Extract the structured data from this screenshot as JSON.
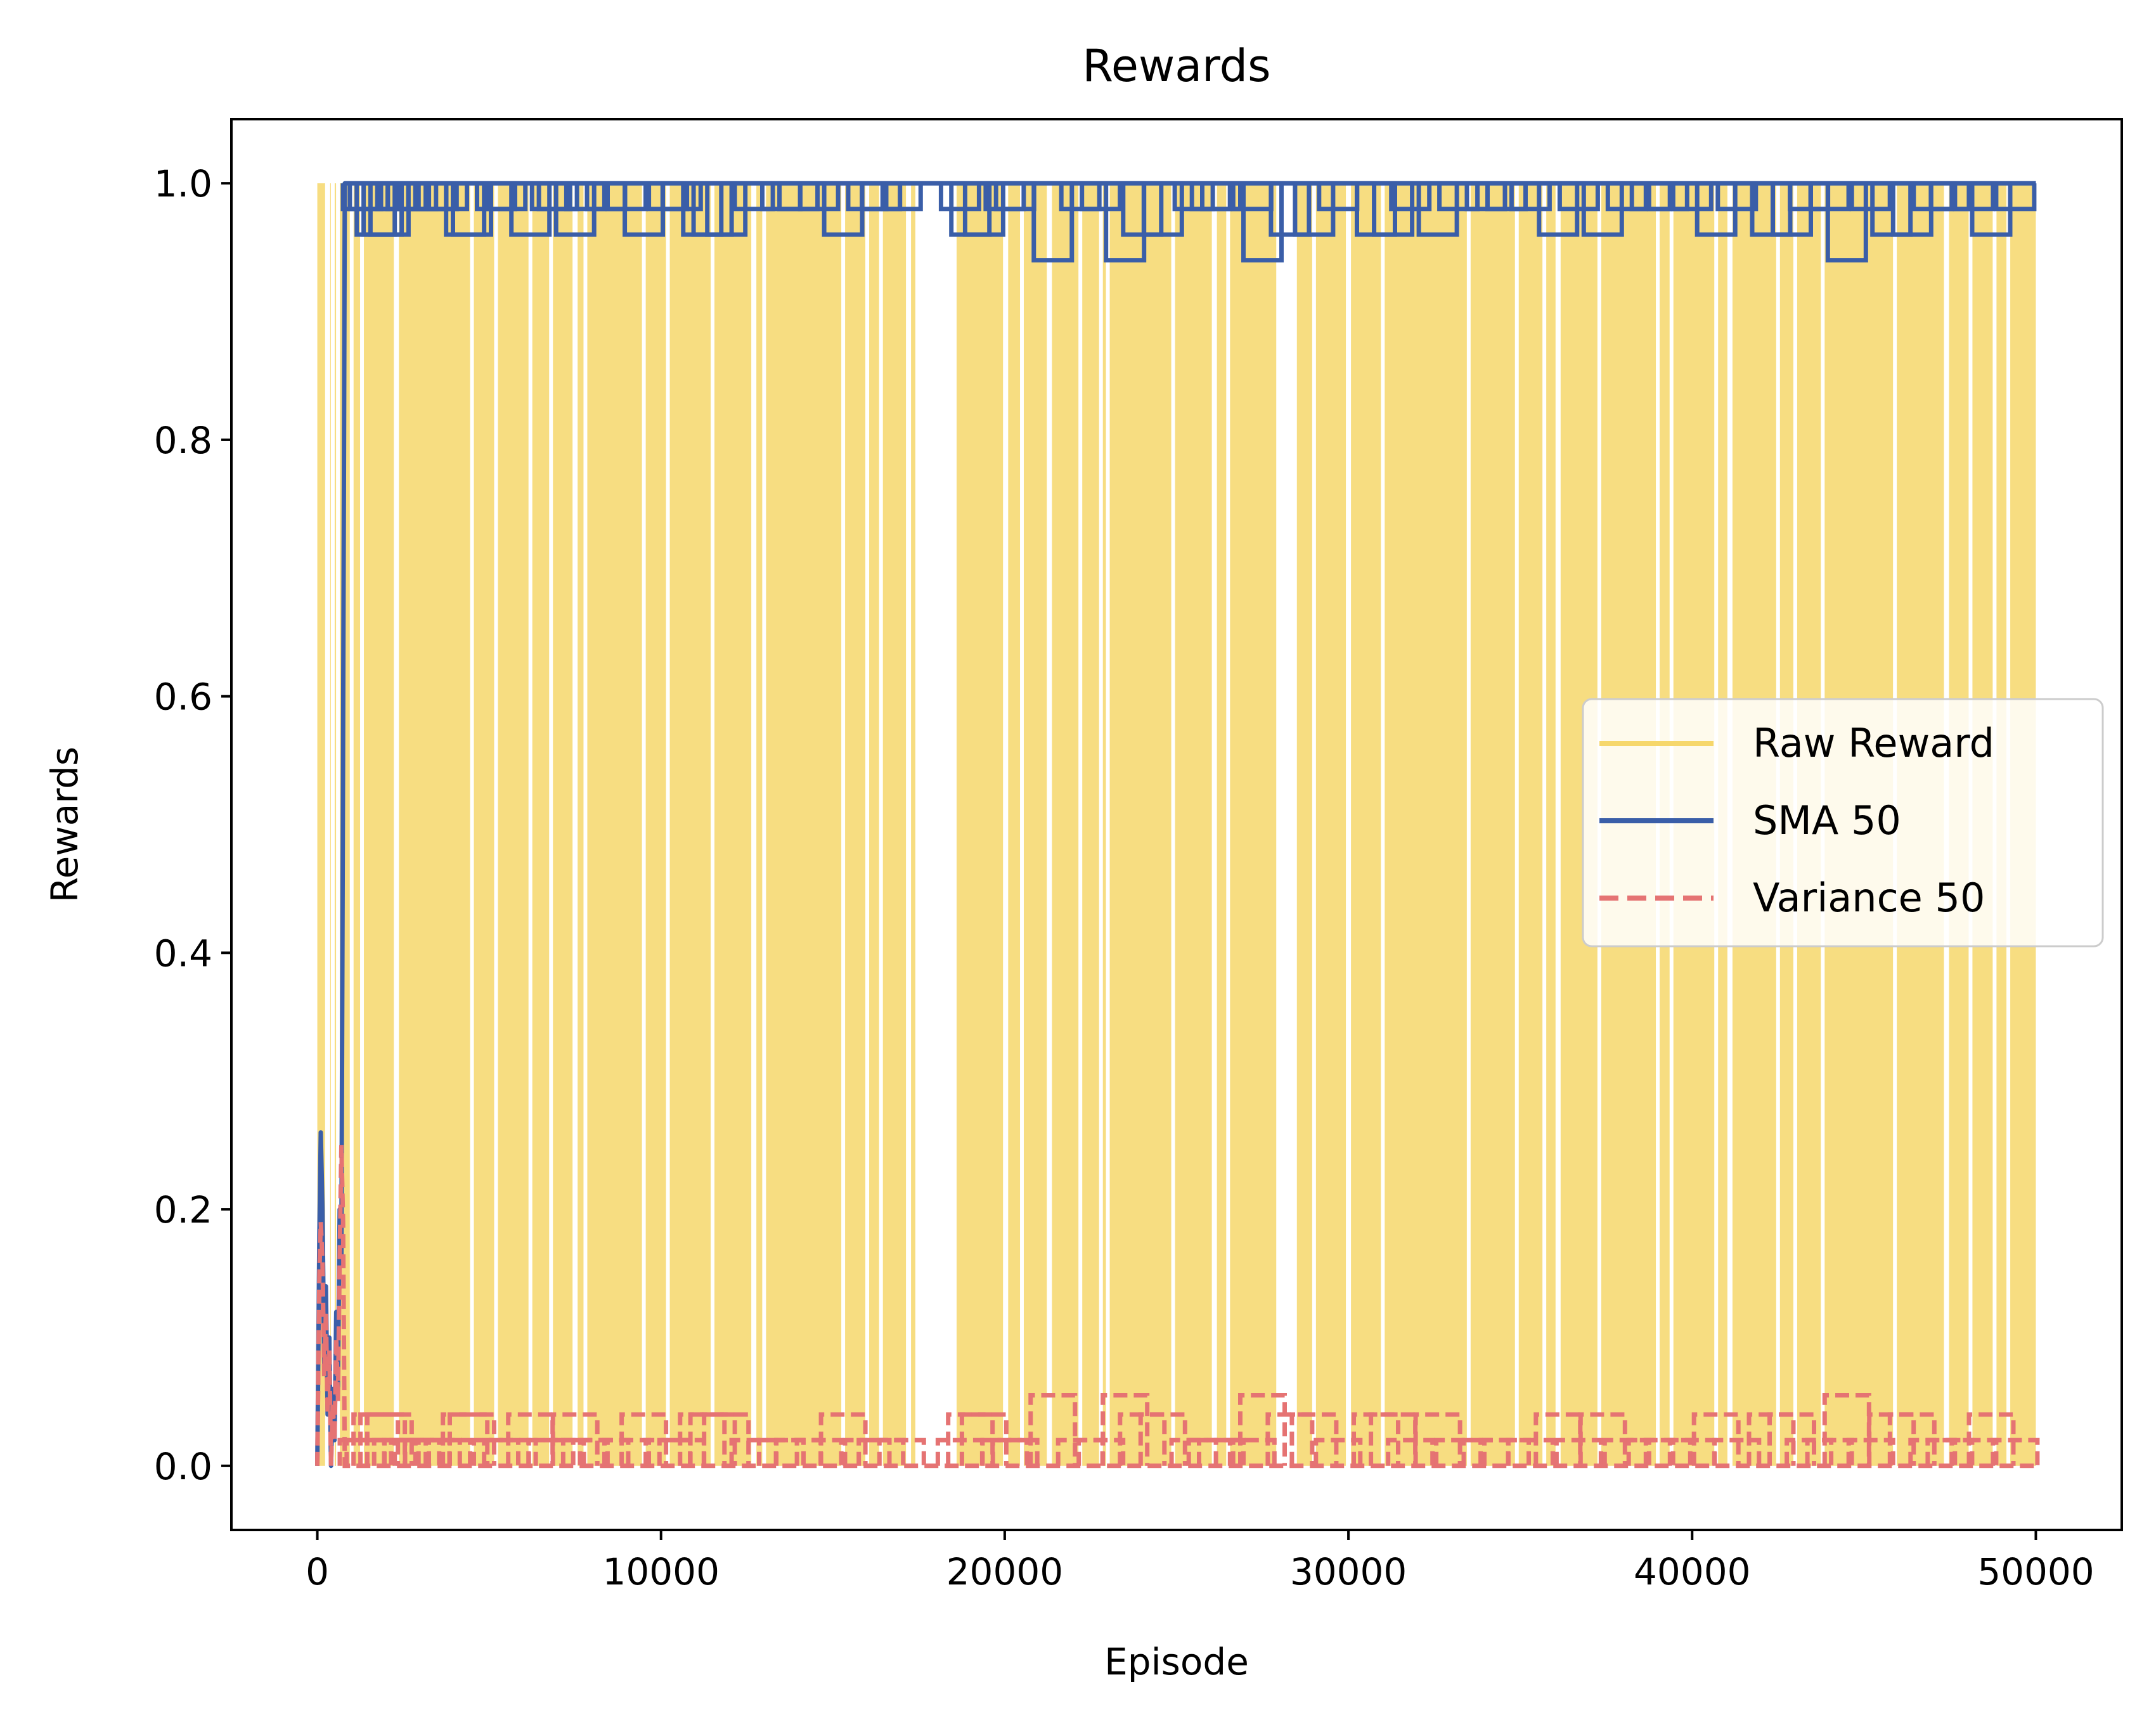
{
  "chart_data": {
    "type": "line",
    "title": "Rewards",
    "xlabel": "Episode",
    "ylabel": "Rewards",
    "xlim": [
      -2500,
      52500
    ],
    "ylim": [
      -0.05,
      1.05
    ],
    "xticks": [
      0,
      10000,
      20000,
      30000,
      40000,
      50000
    ],
    "xtick_labels": [
      "0",
      "10000",
      "20000",
      "30000",
      "40000",
      "50000"
    ],
    "yticks": [
      0.0,
      0.2,
      0.4,
      0.6,
      0.8,
      1.0
    ],
    "ytick_labels": [
      "0.0",
      "0.2",
      "0.4",
      "0.6",
      "0.8",
      "1.0"
    ],
    "grid": false,
    "legend_position": "center-right",
    "series": [
      {
        "name": "Raw Reward",
        "color": "#f6d76b",
        "style": "solid",
        "note_values": "binary rewards (0 or 1); value 1 in nearly every episode after ~700, with sparse zero episodes",
        "x": [
          0,
          700,
          50000
        ],
        "y": [
          0,
          1,
          1
        ],
        "gap_episodes": [
          300,
          450,
          600,
          1000,
          1300,
          2300,
          4500,
          5200,
          6200,
          6800,
          7500,
          7800,
          9500,
          10200,
          11500,
          12700,
          13000,
          15300,
          16000,
          16400,
          17200,
          17600,
          18000,
          18300,
          20500,
          21300,
          22200,
          22800,
          23000,
          24900,
          26100,
          26500,
          28000,
          28300,
          29000,
          30000,
          31000,
          33500,
          34900,
          35700,
          36100,
          37300,
          39000,
          39400,
          40700,
          41100,
          42500,
          43000,
          43800,
          45900,
          47400,
          48100,
          48800,
          49200
        ]
      },
      {
        "name": "SMA 50",
        "color": "#3a5ea8",
        "style": "solid",
        "x": [
          0,
          60,
          100,
          150,
          200,
          250,
          300,
          350,
          400,
          450,
          500,
          550,
          600,
          650,
          700,
          750,
          800,
          850,
          50000
        ],
        "y": [
          0.0,
          0.18,
          0.26,
          0.2,
          0.08,
          0.14,
          0.04,
          0.1,
          0.0,
          0.06,
          0.02,
          0.12,
          0.06,
          0.2,
          0.16,
          0.56,
          1.0,
          1.0,
          1.0
        ],
        "dips": [
          [
            1300,
            0.98
          ],
          [
            1500,
            0.98
          ],
          [
            1700,
            0.96
          ],
          [
            1900,
            0.96
          ],
          [
            2100,
            0.96
          ],
          [
            2300,
            0.98
          ],
          [
            2600,
            0.98
          ],
          [
            2900,
            0.98
          ],
          [
            3200,
            0.98
          ],
          [
            3500,
            0.98
          ],
          [
            3800,
            0.98
          ],
          [
            4300,
            0.96
          ],
          [
            4500,
            0.96
          ],
          [
            5200,
            0.98
          ],
          [
            5500,
            0.98
          ],
          [
            6200,
            0.96
          ],
          [
            6800,
            0.98
          ],
          [
            7000,
            0.98
          ],
          [
            7500,
            0.96
          ],
          [
            7800,
            0.98
          ],
          [
            8400,
            0.98
          ],
          [
            9000,
            0.98
          ],
          [
            9500,
            0.96
          ],
          [
            10200,
            0.98
          ],
          [
            10600,
            0.98
          ],
          [
            11200,
            0.96
          ],
          [
            11500,
            0.96
          ],
          [
            11900,
            0.96
          ],
          [
            12700,
            0.98
          ],
          [
            13500,
            0.98
          ],
          [
            14000,
            0.98
          ],
          [
            14600,
            0.98
          ],
          [
            15300,
            0.96
          ],
          [
            16000,
            0.98
          ],
          [
            16400,
            0.98
          ],
          [
            17000,
            0.98
          ],
          [
            18700,
            0.98
          ],
          [
            19000,
            0.96
          ],
          [
            19400,
            0.96
          ],
          [
            20000,
            0.98
          ],
          [
            20300,
            0.98
          ],
          [
            21400,
            0.94
          ],
          [
            22200,
            0.98
          ],
          [
            22800,
            0.98
          ],
          [
            23500,
            0.94
          ],
          [
            24000,
            0.96
          ],
          [
            24600,
            0.96
          ],
          [
            25500,
            0.98
          ],
          [
            26000,
            0.98
          ],
          [
            26300,
            0.98
          ],
          [
            27200,
            0.98
          ],
          [
            27500,
            0.94
          ],
          [
            28300,
            0.96
          ],
          [
            29000,
            0.96
          ],
          [
            29700,
            0.98
          ],
          [
            30800,
            0.96
          ],
          [
            31300,
            0.96
          ],
          [
            31800,
            0.98
          ],
          [
            32600,
            0.96
          ],
          [
            33200,
            0.98
          ],
          [
            34000,
            0.98
          ],
          [
            34600,
            0.98
          ],
          [
            35300,
            0.98
          ],
          [
            36100,
            0.96
          ],
          [
            36700,
            0.98
          ],
          [
            37400,
            0.96
          ],
          [
            38100,
            0.98
          ],
          [
            38800,
            0.98
          ],
          [
            39300,
            0.98
          ],
          [
            40000,
            0.98
          ],
          [
            40700,
            0.96
          ],
          [
            41300,
            0.98
          ],
          [
            42300,
            0.96
          ],
          [
            42900,
            0.96
          ],
          [
            43400,
            0.98
          ],
          [
            44000,
            0.98
          ],
          [
            44500,
            0.94
          ],
          [
            45200,
            0.98
          ],
          [
            45800,
            0.96
          ],
          [
            46400,
            0.96
          ],
          [
            47000,
            0.98
          ],
          [
            47500,
            0.98
          ],
          [
            48200,
            0.98
          ],
          [
            48700,
            0.96
          ],
          [
            49400,
            0.98
          ]
        ]
      },
      {
        "name": "Variance 50",
        "color": "#e57373",
        "style": "dashed",
        "x": [
          0,
          60,
          100,
          150,
          200,
          250,
          300,
          350,
          400,
          450,
          500,
          550,
          600,
          650,
          700,
          750,
          800,
          850,
          50000
        ],
        "y": [
          0.0,
          0.15,
          0.19,
          0.16,
          0.07,
          0.12,
          0.04,
          0.09,
          0.0,
          0.05,
          0.02,
          0.1,
          0.05,
          0.16,
          0.25,
          0.19,
          0.0,
          0.0,
          0.0
        ],
        "bumps": [
          [
            1300,
            0.02
          ],
          [
            1500,
            0.02
          ],
          [
            1700,
            0.04
          ],
          [
            1900,
            0.04
          ],
          [
            2100,
            0.04
          ],
          [
            2300,
            0.02
          ],
          [
            2600,
            0.02
          ],
          [
            2900,
            0.02
          ],
          [
            3200,
            0.02
          ],
          [
            3500,
            0.02
          ],
          [
            3800,
            0.02
          ],
          [
            4300,
            0.04
          ],
          [
            4500,
            0.04
          ],
          [
            5200,
            0.02
          ],
          [
            5500,
            0.02
          ],
          [
            6200,
            0.04
          ],
          [
            6800,
            0.02
          ],
          [
            7000,
            0.02
          ],
          [
            7500,
            0.04
          ],
          [
            7800,
            0.02
          ],
          [
            8400,
            0.02
          ],
          [
            9000,
            0.02
          ],
          [
            9500,
            0.04
          ],
          [
            10200,
            0.02
          ],
          [
            10600,
            0.02
          ],
          [
            11200,
            0.04
          ],
          [
            11500,
            0.04
          ],
          [
            11900,
            0.04
          ],
          [
            12700,
            0.02
          ],
          [
            13500,
            0.02
          ],
          [
            14000,
            0.02
          ],
          [
            14600,
            0.02
          ],
          [
            15300,
            0.04
          ],
          [
            16000,
            0.02
          ],
          [
            16400,
            0.02
          ],
          [
            17000,
            0.02
          ],
          [
            18700,
            0.02
          ],
          [
            19000,
            0.04
          ],
          [
            19400,
            0.04
          ],
          [
            20000,
            0.02
          ],
          [
            20300,
            0.02
          ],
          [
            21400,
            0.055
          ],
          [
            22200,
            0.02
          ],
          [
            22800,
            0.02
          ],
          [
            23500,
            0.055
          ],
          [
            24000,
            0.04
          ],
          [
            24600,
            0.04
          ],
          [
            25500,
            0.02
          ],
          [
            26000,
            0.02
          ],
          [
            26300,
            0.02
          ],
          [
            27200,
            0.02
          ],
          [
            27500,
            0.055
          ],
          [
            28300,
            0.04
          ],
          [
            29000,
            0.04
          ],
          [
            29700,
            0.02
          ],
          [
            30800,
            0.04
          ],
          [
            31300,
            0.04
          ],
          [
            31800,
            0.02
          ],
          [
            32600,
            0.04
          ],
          [
            33200,
            0.02
          ],
          [
            34000,
            0.02
          ],
          [
            34600,
            0.02
          ],
          [
            35300,
            0.02
          ],
          [
            36100,
            0.04
          ],
          [
            36700,
            0.02
          ],
          [
            37400,
            0.04
          ],
          [
            38100,
            0.02
          ],
          [
            38800,
            0.02
          ],
          [
            39300,
            0.02
          ],
          [
            40000,
            0.02
          ],
          [
            40700,
            0.04
          ],
          [
            41300,
            0.02
          ],
          [
            42300,
            0.04
          ],
          [
            42900,
            0.04
          ],
          [
            43400,
            0.02
          ],
          [
            44000,
            0.02
          ],
          [
            44500,
            0.055
          ],
          [
            45200,
            0.02
          ],
          [
            45800,
            0.04
          ],
          [
            46400,
            0.04
          ],
          [
            47000,
            0.02
          ],
          [
            47500,
            0.02
          ],
          [
            48200,
            0.02
          ],
          [
            48700,
            0.04
          ],
          [
            49400,
            0.02
          ]
        ]
      }
    ]
  }
}
